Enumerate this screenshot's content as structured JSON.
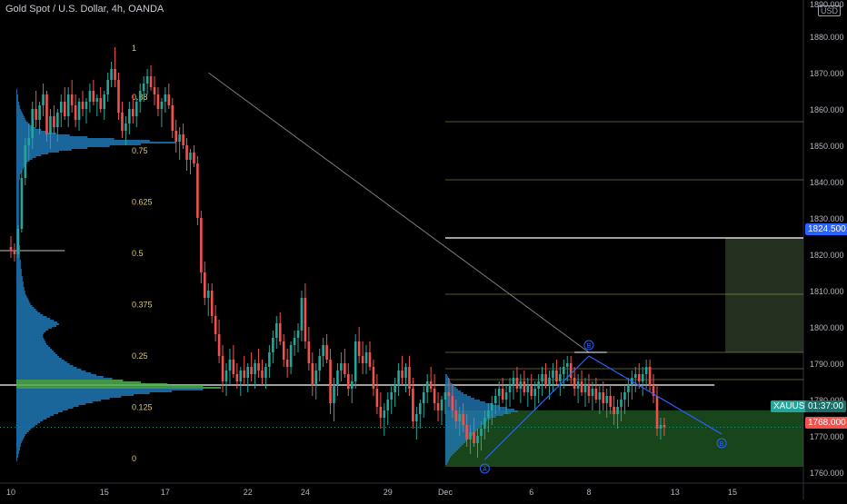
{
  "header": {
    "title": "Gold Spot / U.S. Dollar, 4h, OANDA",
    "currency": "USD"
  },
  "labels": {
    "symbol": "XAUUSD",
    "countdown": "01:37:00",
    "target_price": "1824.500",
    "stop_price": "1768.000",
    "point_b1": "B",
    "point_b2": "B",
    "point_a": "A",
    "fib_top": "1",
    "fib_start_label": "0.88"
  },
  "colors": {
    "up": "#26a69a",
    "down": "#ef5350",
    "volume_profile": "#1f77b4",
    "poc": "#4caf50",
    "fib": "#a5b04a",
    "target_zone": "#2f3f2a",
    "stop_zone": "#2e7d32",
    "bg": "#000000",
    "axis_text": "#b2b5be"
  },
  "chart_data": {
    "type": "candlestick",
    "title": "Gold Spot / U.S. Dollar, 4h, OANDA",
    "ylim": [
      1757,
      1888
    ],
    "y_ticks": [
      1760,
      1770,
      1780,
      1790,
      1800,
      1810,
      1820,
      1830,
      1840,
      1850,
      1860,
      1870,
      1880
    ],
    "y_tick_labels": [
      "1760.000",
      "1770.000",
      "1780.000",
      "1790.000",
      "1800.000",
      "1810.000",
      "1820.000",
      "1830.000",
      "1840.000",
      "1850.000",
      "1860.000",
      "1870.000",
      "1880.000"
    ],
    "partial_top_label": "1890.000",
    "x_ticks": [
      {
        "label": "10",
        "bar": 0
      },
      {
        "label": "15",
        "bar": 26
      },
      {
        "label": "17",
        "bar": 43
      },
      {
        "label": "22",
        "bar": 66
      },
      {
        "label": "24",
        "bar": 82
      },
      {
        "label": "29",
        "bar": 105
      },
      {
        "label": "Dec",
        "bar": 121
      },
      {
        "label": "6",
        "bar": 145
      },
      {
        "label": "8",
        "bar": 161
      },
      {
        "label": "13",
        "bar": 185
      },
      {
        "label": "15",
        "bar": 201
      }
    ],
    "fib_levels": [
      {
        "label": "1",
        "value": 1.0
      },
      {
        "label": "0.88",
        "value": 0.88
      },
      {
        "label": "0.75",
        "value": 0.75
      },
      {
        "label": "0.625",
        "value": 0.625
      },
      {
        "label": "0.5",
        "value": 0.5
      },
      {
        "label": "0.375",
        "value": 0.375
      },
      {
        "label": "0.25",
        "value": 0.25
      },
      {
        "label": "0.125",
        "value": 0.125
      },
      {
        "label": "0",
        "value": 0.0
      }
    ],
    "fib_price_range": [
      1764,
      1877
    ],
    "horizontal_levels": {
      "poc": 1784,
      "target": 1824.5,
      "upper_lines": [
        1856.5,
        1840.5,
        1809,
        1793,
        1788.5,
        1785.5
      ],
      "current": 1772.4
    },
    "zones": {
      "target_zone": {
        "from_bar": 199,
        "to_bar": 210,
        "low": 1793,
        "high": 1824.5
      },
      "stop_zone": {
        "from_bar": 121,
        "to_bar": 210,
        "low": 1761.5,
        "high": 1777
      }
    },
    "trend_line": {
      "from": {
        "bar": 55,
        "price": 1870
      },
      "to": {
        "bar": 161,
        "price": 1793
      }
    },
    "pattern": [
      {
        "bar": 132,
        "price": 1763.5,
        "label": "A"
      },
      {
        "bar": 161,
        "price": 1792,
        "label": "B"
      },
      {
        "bar": 198,
        "price": 1770.5,
        "label": "B"
      }
    ],
    "candles": [
      [
        1822,
        1825,
        1819,
        1821
      ],
      [
        1821,
        1823,
        1818,
        1820
      ],
      [
        1820,
        1828,
        1819,
        1827
      ],
      [
        1827,
        1843,
        1826,
        1841
      ],
      [
        1841,
        1852,
        1839,
        1850
      ],
      [
        1850,
        1856,
        1846,
        1852
      ],
      [
        1852,
        1862,
        1849,
        1860
      ],
      [
        1860,
        1865,
        1855,
        1857
      ],
      [
        1857,
        1862,
        1853,
        1861
      ],
      [
        1861,
        1867,
        1858,
        1864
      ],
      [
        1864,
        1865,
        1851,
        1853
      ],
      [
        1853,
        1860,
        1849,
        1858
      ],
      [
        1858,
        1861,
        1853,
        1855
      ],
      [
        1855,
        1860,
        1851,
        1859
      ],
      [
        1859,
        1864,
        1855,
        1862
      ],
      [
        1862,
        1866,
        1857,
        1858
      ],
      [
        1858,
        1866,
        1855,
        1864
      ],
      [
        1864,
        1868,
        1859,
        1861
      ],
      [
        1861,
        1864,
        1855,
        1857
      ],
      [
        1857,
        1863,
        1854,
        1862
      ],
      [
        1862,
        1865,
        1858,
        1860
      ],
      [
        1860,
        1863,
        1856,
        1862
      ],
      [
        1862,
        1867,
        1859,
        1865
      ],
      [
        1865,
        1868,
        1861,
        1862
      ],
      [
        1862,
        1864,
        1858,
        1863
      ],
      [
        1863,
        1866,
        1859,
        1860
      ],
      [
        1860,
        1865,
        1857,
        1864
      ],
      [
        1864,
        1870,
        1862,
        1868
      ],
      [
        1868,
        1873,
        1866,
        1871
      ],
      [
        1871,
        1877,
        1866,
        1868
      ],
      [
        1868,
        1870,
        1857,
        1859
      ],
      [
        1859,
        1862,
        1852,
        1854
      ],
      [
        1854,
        1858,
        1850,
        1856
      ],
      [
        1856,
        1862,
        1853,
        1860
      ],
      [
        1860,
        1864,
        1856,
        1858
      ],
      [
        1858,
        1863,
        1855,
        1862
      ],
      [
        1862,
        1867,
        1859,
        1865
      ],
      [
        1865,
        1869,
        1862,
        1867
      ],
      [
        1867,
        1871,
        1864,
        1869
      ],
      [
        1869,
        1872,
        1865,
        1866
      ],
      [
        1866,
        1869,
        1861,
        1864
      ],
      [
        1864,
        1866,
        1858,
        1860
      ],
      [
        1860,
        1863,
        1855,
        1862
      ],
      [
        1862,
        1866,
        1859,
        1864
      ],
      [
        1864,
        1867,
        1860,
        1861
      ],
      [
        1861,
        1863,
        1852,
        1854
      ],
      [
        1854,
        1857,
        1848,
        1851
      ],
      [
        1851,
        1855,
        1846,
        1853
      ],
      [
        1853,
        1856,
        1849,
        1850
      ],
      [
        1850,
        1852,
        1843,
        1846
      ],
      [
        1846,
        1849,
        1842,
        1848
      ],
      [
        1848,
        1850,
        1844,
        1845
      ],
      [
        1845,
        1847,
        1828,
        1830
      ],
      [
        1830,
        1832,
        1812,
        1815
      ],
      [
        1815,
        1818,
        1806,
        1808
      ],
      [
        1808,
        1812,
        1803,
        1810
      ],
      [
        1810,
        1812,
        1801,
        1803
      ],
      [
        1803,
        1806,
        1796,
        1798
      ],
      [
        1798,
        1802,
        1790,
        1792
      ],
      [
        1792,
        1795,
        1782,
        1785
      ],
      [
        1785,
        1790,
        1781,
        1788
      ],
      [
        1788,
        1794,
        1784,
        1791
      ],
      [
        1791,
        1795,
        1786,
        1787
      ],
      [
        1787,
        1790,
        1783,
        1785
      ],
      [
        1785,
        1789,
        1781,
        1788
      ],
      [
        1788,
        1792,
        1784,
        1786
      ],
      [
        1786,
        1790,
        1782,
        1789
      ],
      [
        1789,
        1793,
        1785,
        1787
      ],
      [
        1787,
        1791,
        1783,
        1790
      ],
      [
        1790,
        1794,
        1786,
        1788
      ],
      [
        1788,
        1791,
        1784,
        1786
      ],
      [
        1786,
        1790,
        1783,
        1789
      ],
      [
        1789,
        1795,
        1786,
        1793
      ],
      [
        1793,
        1799,
        1790,
        1797
      ],
      [
        1797,
        1803,
        1794,
        1801
      ],
      [
        1801,
        1804,
        1795,
        1796
      ],
      [
        1796,
        1798,
        1789,
        1791
      ],
      [
        1791,
        1794,
        1786,
        1789
      ],
      [
        1789,
        1796,
        1787,
        1795
      ],
      [
        1795,
        1799,
        1792,
        1797
      ],
      [
        1797,
        1801,
        1793,
        1799
      ],
      [
        1799,
        1810,
        1796,
        1808
      ],
      [
        1808,
        1812,
        1794,
        1796
      ],
      [
        1796,
        1800,
        1788,
        1790
      ],
      [
        1790,
        1793,
        1781,
        1784
      ],
      [
        1784,
        1790,
        1780,
        1788
      ],
      [
        1788,
        1794,
        1785,
        1792
      ],
      [
        1792,
        1797,
        1789,
        1795
      ],
      [
        1795,
        1798,
        1790,
        1791
      ],
      [
        1791,
        1794,
        1776,
        1779
      ],
      [
        1779,
        1786,
        1774,
        1784
      ],
      [
        1784,
        1790,
        1781,
        1788
      ],
      [
        1788,
        1793,
        1785,
        1790
      ],
      [
        1790,
        1794,
        1786,
        1787
      ],
      [
        1787,
        1790,
        1781,
        1783
      ],
      [
        1783,
        1787,
        1779,
        1785
      ],
      [
        1785,
        1798,
        1783,
        1796
      ],
      [
        1796,
        1800,
        1790,
        1792
      ],
      [
        1792,
        1796,
        1787,
        1790
      ],
      [
        1790,
        1795,
        1787,
        1793
      ],
      [
        1793,
        1796,
        1788,
        1789
      ],
      [
        1789,
        1791,
        1781,
        1783
      ],
      [
        1783,
        1787,
        1776,
        1778
      ],
      [
        1778,
        1782,
        1772,
        1775
      ],
      [
        1775,
        1779,
        1770,
        1777
      ],
      [
        1777,
        1782,
        1773,
        1780
      ],
      [
        1780,
        1784,
        1776,
        1782
      ],
      [
        1782,
        1786,
        1778,
        1784
      ],
      [
        1784,
        1790,
        1781,
        1788
      ],
      [
        1788,
        1792,
        1784,
        1786
      ],
      [
        1786,
        1790,
        1782,
        1789
      ],
      [
        1789,
        1792,
        1781,
        1783
      ],
      [
        1783,
        1786,
        1772,
        1774
      ],
      [
        1774,
        1778,
        1769,
        1776
      ],
      [
        1776,
        1780,
        1772,
        1779
      ],
      [
        1779,
        1784,
        1775,
        1782
      ],
      [
        1782,
        1787,
        1779,
        1785
      ],
      [
        1785,
        1789,
        1782,
        1783
      ],
      [
        1783,
        1787,
        1777,
        1779
      ],
      [
        1779,
        1782,
        1774,
        1777
      ],
      [
        1777,
        1781,
        1773,
        1780
      ],
      [
        1780,
        1784,
        1776,
        1782
      ],
      [
        1782,
        1786,
        1778,
        1781
      ],
      [
        1781,
        1784,
        1775,
        1777
      ],
      [
        1777,
        1780,
        1772,
        1774
      ],
      [
        1774,
        1778,
        1770,
        1776
      ],
      [
        1776,
        1779,
        1771,
        1773
      ],
      [
        1773,
        1776,
        1767,
        1769
      ],
      [
        1769,
        1773,
        1765,
        1771
      ],
      [
        1771,
        1775,
        1767,
        1768
      ],
      [
        1768,
        1772,
        1764,
        1770
      ],
      [
        1770,
        1774,
        1766,
        1772
      ],
      [
        1772,
        1777,
        1769,
        1775
      ],
      [
        1775,
        1779,
        1771,
        1777
      ],
      [
        1777,
        1781,
        1773,
        1779
      ],
      [
        1779,
        1783,
        1776,
        1781
      ],
      [
        1781,
        1785,
        1777,
        1783
      ],
      [
        1783,
        1786,
        1779,
        1780
      ],
      [
        1780,
        1784,
        1776,
        1782
      ],
      [
        1782,
        1786,
        1778,
        1784
      ],
      [
        1784,
        1788,
        1780,
        1786
      ],
      [
        1786,
        1789,
        1782,
        1783
      ],
      [
        1783,
        1787,
        1779,
        1785
      ],
      [
        1785,
        1788,
        1781,
        1782
      ],
      [
        1782,
        1786,
        1778,
        1784
      ],
      [
        1784,
        1787,
        1780,
        1781
      ],
      [
        1781,
        1785,
        1777,
        1783
      ],
      [
        1783,
        1787,
        1779,
        1785
      ],
      [
        1785,
        1789,
        1781,
        1787
      ],
      [
        1787,
        1790,
        1783,
        1784
      ],
      [
        1784,
        1788,
        1780,
        1786
      ],
      [
        1786,
        1790,
        1782,
        1788
      ],
      [
        1788,
        1791,
        1784,
        1785
      ],
      [
        1785,
        1789,
        1781,
        1787
      ],
      [
        1787,
        1791,
        1783,
        1789
      ],
      [
        1789,
        1792,
        1785,
        1790
      ],
      [
        1790,
        1792,
        1784,
        1786
      ],
      [
        1786,
        1789,
        1781,
        1783
      ],
      [
        1783,
        1787,
        1779,
        1785
      ],
      [
        1785,
        1788,
        1781,
        1782
      ],
      [
        1782,
        1786,
        1778,
        1784
      ],
      [
        1784,
        1787,
        1779,
        1781
      ],
      [
        1781,
        1785,
        1777,
        1783
      ],
      [
        1783,
        1786,
        1779,
        1780
      ],
      [
        1780,
        1784,
        1776,
        1782
      ],
      [
        1782,
        1785,
        1777,
        1779
      ],
      [
        1779,
        1783,
        1775,
        1781
      ],
      [
        1781,
        1784,
        1776,
        1778
      ],
      [
        1778,
        1781,
        1773,
        1776
      ],
      [
        1776,
        1780,
        1772,
        1778
      ],
      [
        1778,
        1782,
        1774,
        1780
      ],
      [
        1780,
        1784,
        1776,
        1782
      ],
      [
        1782,
        1786,
        1778,
        1784
      ],
      [
        1784,
        1788,
        1780,
        1786
      ],
      [
        1786,
        1789,
        1782,
        1787
      ],
      [
        1787,
        1790,
        1783,
        1785
      ],
      [
        1785,
        1789,
        1781,
        1787
      ],
      [
        1787,
        1791,
        1783,
        1789
      ],
      [
        1789,
        1791,
        1782,
        1784
      ],
      [
        1784,
        1787,
        1779,
        1781
      ],
      [
        1781,
        1784,
        1770,
        1772
      ],
      [
        1772,
        1775,
        1769,
        1773
      ],
      [
        1773,
        1775,
        1770,
        1772.4
      ]
    ],
    "volume_profile_main": {
      "price_from": 1763,
      "price_step": 0.5,
      "values": [
        1,
        1,
        2,
        2,
        3,
        3,
        4,
        4,
        5,
        5,
        6,
        7,
        8,
        9,
        10,
        12,
        14,
        16,
        18,
        21,
        24,
        27,
        30,
        34,
        38,
        42,
        47,
        52,
        58,
        64,
        70,
        78,
        86,
        95,
        105,
        118,
        132,
        150,
        175,
        210,
        230,
        210,
        170,
        140,
        120,
        108,
        98,
        90,
        84,
        78,
        73,
        68,
        64,
        60,
        57,
        54,
        51,
        48,
        46,
        44,
        42,
        40,
        38,
        36,
        34,
        33,
        32,
        31,
        30,
        30,
        31,
        33,
        36,
        40,
        45,
        48,
        46,
        42,
        38,
        34,
        30,
        27,
        24,
        22,
        20,
        18,
        16,
        15,
        14,
        13,
        12,
        11,
        10,
        10,
        9,
        9,
        8,
        8,
        8,
        7,
        7,
        7,
        6,
        6,
        6,
        6,
        5,
        5,
        5,
        5,
        5,
        4,
        4,
        4,
        4,
        4,
        4,
        4,
        4,
        3,
        3,
        3,
        3,
        3,
        3,
        3,
        3,
        3,
        3,
        3,
        3,
        3,
        3,
        3,
        3,
        3,
        3,
        3,
        3,
        3,
        3,
        3,
        3,
        3,
        3,
        3,
        3,
        3,
        3,
        3,
        3,
        3,
        3,
        3,
        3,
        4,
        4,
        4,
        5,
        6,
        7,
        8,
        9,
        10,
        12,
        15,
        18,
        22,
        28,
        36,
        48,
        62,
        80,
        105,
        140,
        180,
        150,
        110,
        80,
        60,
        45,
        35,
        28,
        22,
        18,
        15,
        13,
        11,
        10,
        9,
        8,
        7,
        6,
        5,
        4,
        4,
        3,
        3,
        2,
        2,
        2,
        2,
        1,
        1,
        1
      ]
    },
    "volume_profile_recent": {
      "price_from": 1762,
      "price_step": 0.5,
      "values": [
        2,
        3,
        4,
        5,
        6,
        8,
        10,
        12,
        14,
        16,
        18,
        20,
        22,
        24,
        26,
        28,
        30,
        32,
        34,
        36,
        38,
        40,
        42,
        44,
        46,
        50,
        56,
        64,
        72,
        80,
        76,
        68,
        60,
        52,
        44,
        38,
        32,
        28,
        24,
        20,
        17,
        14,
        12,
        10,
        8,
        6,
        5,
        4,
        3,
        2
      ]
    }
  }
}
